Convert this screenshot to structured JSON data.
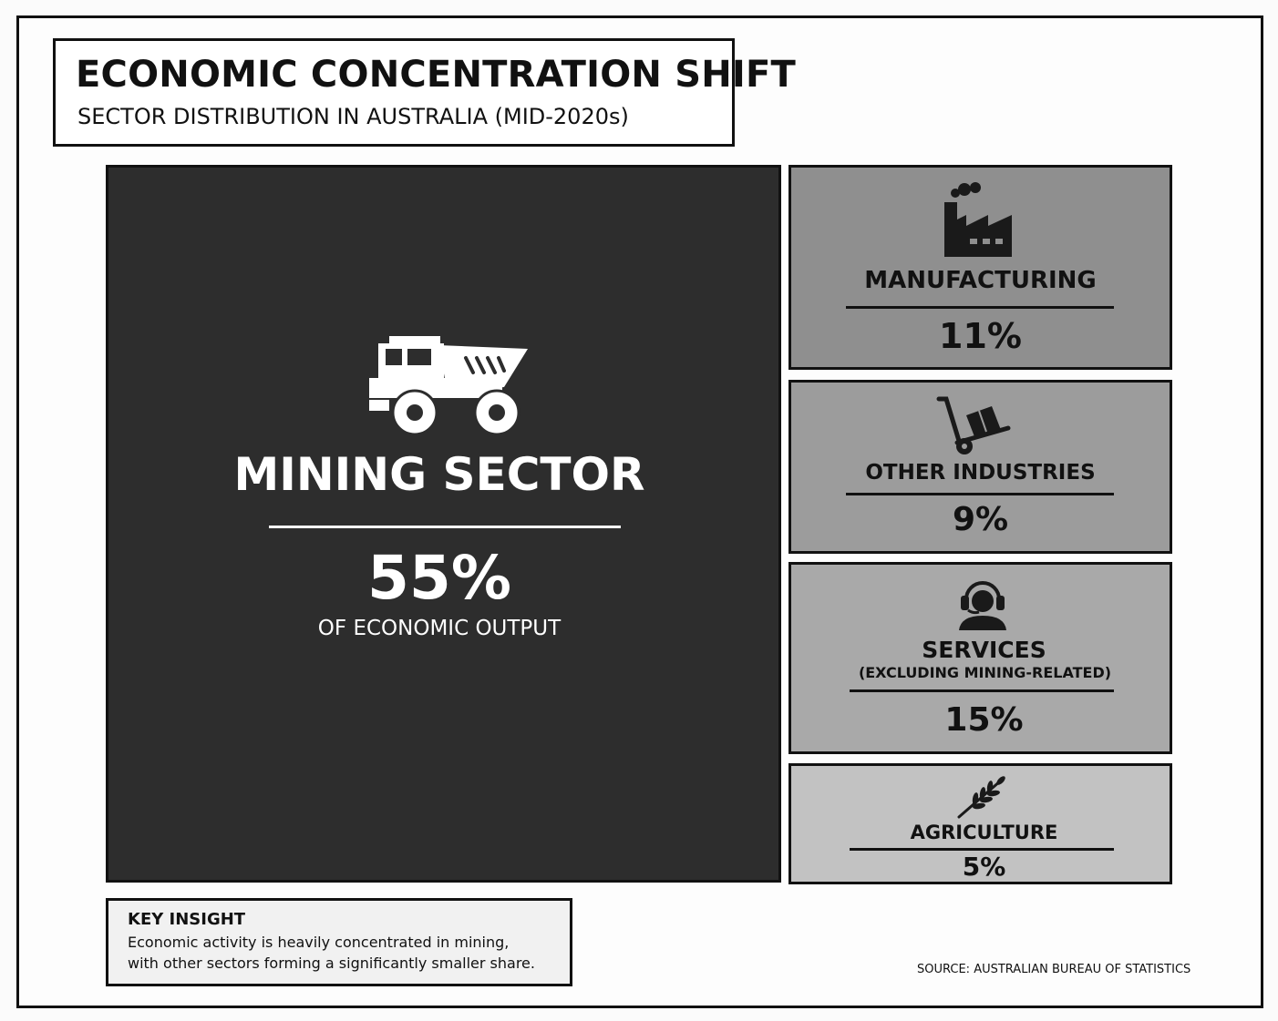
{
  "header": {
    "title": "ECONOMIC CONCENTRATION SHIFT",
    "subtitle": "SECTOR DISTRIBUTION IN AUSTRALIA (MID-2020s)"
  },
  "chart_data": {
    "type": "treemap",
    "title": "ECONOMIC CONCENTRATION SHIFT",
    "subtitle": "SECTOR DISTRIBUTION IN AUSTRALIA (MID-2020s)",
    "unit": "%",
    "sectors": [
      {
        "name": "MINING SECTOR",
        "value": 55,
        "value_label": "55%",
        "description": "OF ECONOMIC OUTPUT",
        "icon": "mining-truck-icon",
        "color": "#2d2d2d"
      },
      {
        "name": "MANUFACTURING",
        "value": 11,
        "value_label": "11%",
        "icon": "factory-icon",
        "color": "#8f8f8f"
      },
      {
        "name": "OTHER INDUSTRIES",
        "value": 9,
        "value_label": "9%",
        "icon": "hand-truck-icon",
        "color": "#9c9c9c"
      },
      {
        "name": "SERVICES",
        "sublabel": "(EXCLUDING MINING-RELATED)",
        "value": 15,
        "value_label": "15%",
        "icon": "headset-operator-icon",
        "color": "#a9a9a9"
      },
      {
        "name": "AGRICULTURE",
        "value": 5,
        "value_label": "5%",
        "icon": "wheat-icon",
        "color": "#c2c2c2"
      }
    ]
  },
  "insight": {
    "heading": "KEY INSIGHT",
    "line1": "Economic activity is heavily concentrated in mining,",
    "line2": "with other sectors forming a significantly smaller share."
  },
  "source": "SOURCE: AUSTRALIAN BUREAU OF STATISTICS"
}
